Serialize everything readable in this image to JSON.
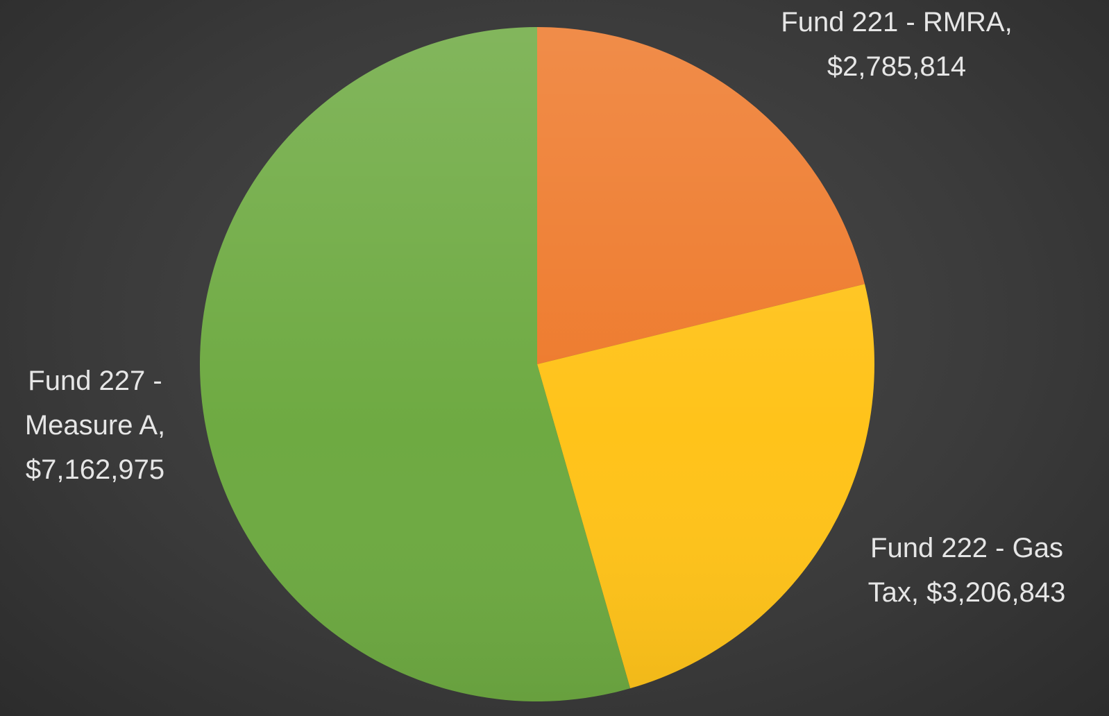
{
  "chart_data": {
    "type": "pie",
    "categories": [
      "Fund 221 - RMRA,",
      "Fund 222 - Gas Tax,",
      "Fund 227 - Measure A,"
    ],
    "values": [
      2785814,
      3206843,
      7162975
    ],
    "value_labels": [
      "$2,785,814",
      "$3,206,843",
      "$7,162,975"
    ],
    "colors": [
      "#ee7a2c",
      "#ffc31a",
      "#6eaa42"
    ]
  }
}
